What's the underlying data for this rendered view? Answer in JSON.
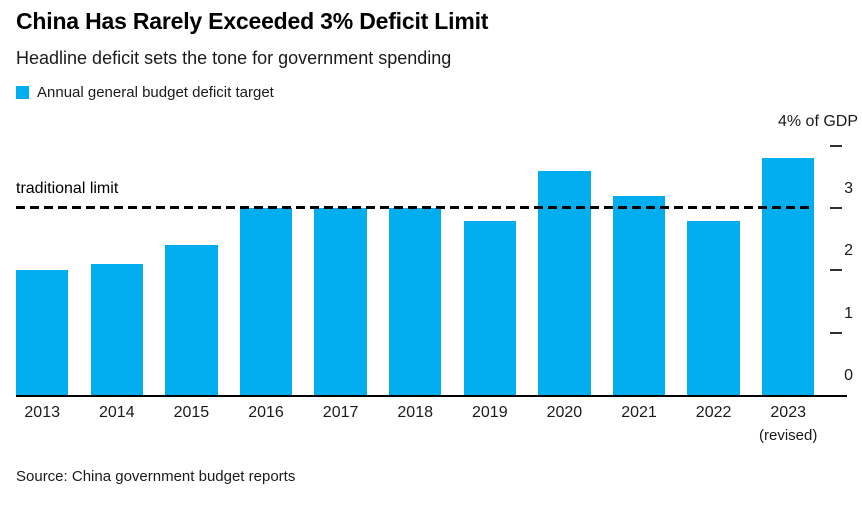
{
  "header": {
    "title": "China Has Rarely Exceeded 3% Deficit Limit",
    "subtitle": "Headline deficit sets the tone for government spending",
    "legend": [
      {
        "label": "Annual general budget deficit target",
        "color": "#00AEF0"
      }
    ]
  },
  "chart_data": {
    "type": "bar",
    "title": "China Has Rarely Exceeded 3% Deficit Limit",
    "subtitle": "Headline deficit sets the tone for government spending",
    "series_name": "Annual general budget deficit target",
    "categories": [
      "2013",
      "2014",
      "2015",
      "2016",
      "2017",
      "2018",
      "2019",
      "2020",
      "2021",
      "2022",
      "2023"
    ],
    "category_sublabels": {
      "2023": "(revised)"
    },
    "values": [
      2.0,
      2.1,
      2.4,
      3.0,
      3.0,
      3.0,
      2.8,
      3.6,
      3.2,
      2.8,
      3.8
    ],
    "unit_label": "4% of GDP",
    "ylabel": "% of GDP",
    "xlabel": "",
    "ylim": [
      0,
      4
    ],
    "y_ticks": [
      0,
      1,
      2,
      3,
      4
    ],
    "grid": "off",
    "legend_position": "top-left",
    "bar_color": "#00AEF0",
    "reference_line": {
      "value": 3,
      "label": "traditional limit",
      "style": "dashed",
      "color": "#000000"
    }
  },
  "footer": {
    "source": "Source: China government budget reports"
  }
}
